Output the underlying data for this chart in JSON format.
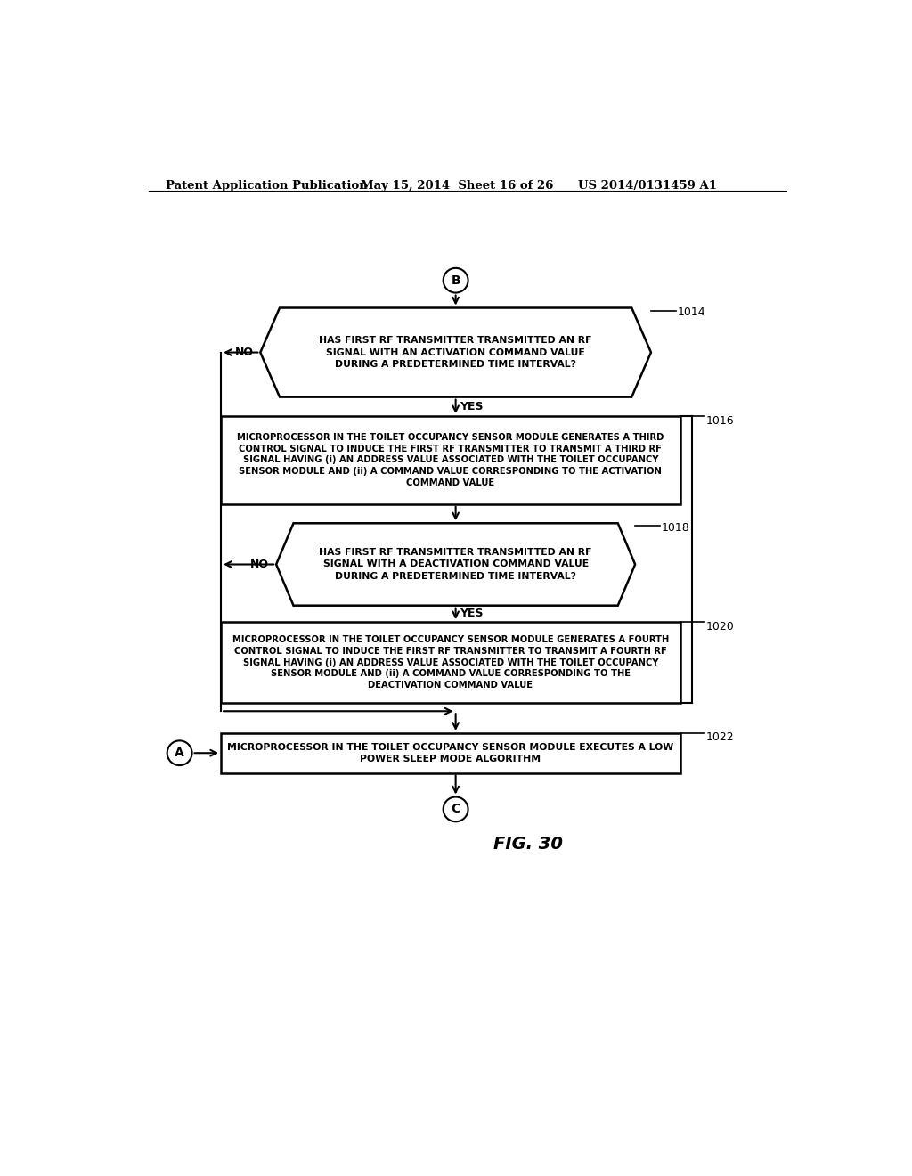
{
  "title_left": "Patent Application Publication",
  "title_mid": "May 15, 2014  Sheet 16 of 26",
  "title_right": "US 2014/0131459 A1",
  "fig_label": "FIG. 30",
  "connector_B": "B",
  "connector_A": "A",
  "connector_C": "C",
  "node_1014_label": "1014",
  "node_1014_text": "HAS FIRST RF TRANSMITTER TRANSMITTED AN RF\nSIGNAL WITH AN ACTIVATION COMMAND VALUE\nDURING A PREDETERMINED TIME INTERVAL?",
  "node_1016_label": "1016",
  "node_1016_text": "MICROPROCESSOR IN THE TOILET OCCUPANCY SENSOR MODULE GENERATES A THIRD\nCONTROL SIGNAL TO INDUCE THE FIRST RF TRANSMITTER TO TRANSMIT A THIRD RF\nSIGNAL HAVING (i) AN ADDRESS VALUE ASSOCIATED WITH THE TOILET OCCUPANCY\nSENSOR MODULE AND (ii) A COMMAND VALUE CORRESPONDING TO THE ACTIVATION\nCOMMAND VALUE",
  "node_1018_label": "1018",
  "node_1018_text": "HAS FIRST RF TRANSMITTER TRANSMITTED AN RF\nSIGNAL WITH A DEACTIVATION COMMAND VALUE\nDURING A PREDETERMINED TIME INTERVAL?",
  "node_1020_label": "1020",
  "node_1020_text": "MICROPROCESSOR IN THE TOILET OCCUPANCY SENSOR MODULE GENERATES A FOURTH\nCONTROL SIGNAL TO INDUCE THE FIRST RF TRANSMITTER TO TRANSMIT A FOURTH RF\nSIGNAL HAVING (i) AN ADDRESS VALUE ASSOCIATED WITH THE TOILET OCCUPANCY\nSENSOR MODULE AND (ii) A COMMAND VALUE CORRESPONDING TO THE\nDEACTIVATION COMMAND VALUE",
  "node_1022_label": "1022",
  "node_1022_text": "MICROPROCESSOR IN THE TOILET OCCUPANCY SENSOR MODULE EXECUTES A LOW\nPOWER SLEEP MODE ALGORITHM",
  "yes_label": "YES",
  "no_label": "NO",
  "bg_color": "#ffffff",
  "line_color": "#000000",
  "text_color": "#000000"
}
